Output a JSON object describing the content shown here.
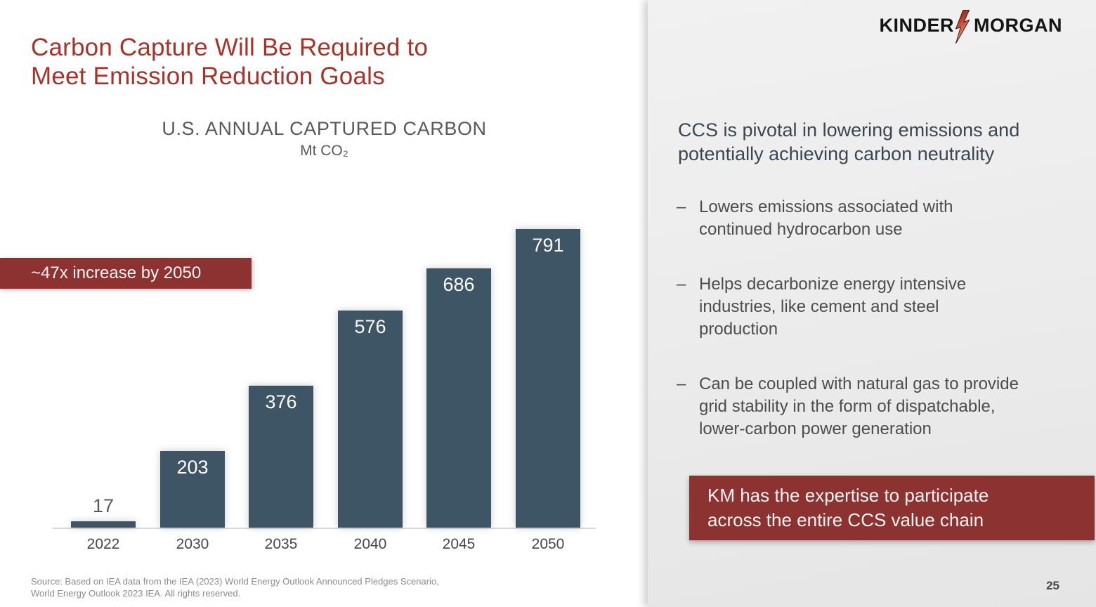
{
  "header": {
    "title_line1": "Carbon Capture Will Be Required to",
    "title_line2": "Meet Emission Reduction Goals"
  },
  "logo": {
    "left": "KINDER",
    "right": "MORGAN",
    "bolt_icon": "lightning-bolt"
  },
  "chart_data": {
    "type": "bar",
    "title": "U.S. ANNUAL CAPTURED CARBON",
    "subtitle_units": "Mt CO₂",
    "categories": [
      "2022",
      "2030",
      "2035",
      "2040",
      "2045",
      "2050"
    ],
    "values": [
      17,
      203,
      376,
      576,
      686,
      791
    ],
    "ylim": [
      0,
      800
    ],
    "grid": false,
    "legend": "none",
    "bar_color": "#3E5565",
    "value_labels_shown": true,
    "annotation": "~47x increase by 2050"
  },
  "callout": {
    "text": "~47x increase by 2050",
    "bg": "#8C3332"
  },
  "source": {
    "line1": "Source:  Based on IEA data from the IEA (2023) World Energy Outlook Announced Pledges Scenario,",
    "line2": "World Energy Outlook 2023 IEA. All rights reserved."
  },
  "panel": {
    "bg": "#EBEBEB",
    "heading_line1": "CCS is pivotal in lowering emissions and",
    "heading_line2": "potentially achieving carbon neutrality",
    "bullet_marker": "–",
    "bullets": [
      {
        "lines": [
          "Lowers emissions associated with",
          "continued hydrocarbon use"
        ]
      },
      {
        "lines": [
          "Helps decarbonize energy intensive",
          "industries, like cement and steel",
          "production"
        ]
      },
      {
        "lines": [
          "Can be coupled with natural gas to provide",
          "grid stability in the form of dispatchable,",
          "lower-carbon power generation"
        ]
      }
    ],
    "km_box": {
      "line1": "KM has the expertise to participate",
      "line2": "across the entire CCS value chain",
      "bg": "#8C3332"
    }
  },
  "colors": {
    "title_red": "#A93128",
    "box_red": "#8C3332",
    "bar_slate": "#3E5565",
    "panel_gray": "#EBEBEB"
  },
  "page_number": "25"
}
